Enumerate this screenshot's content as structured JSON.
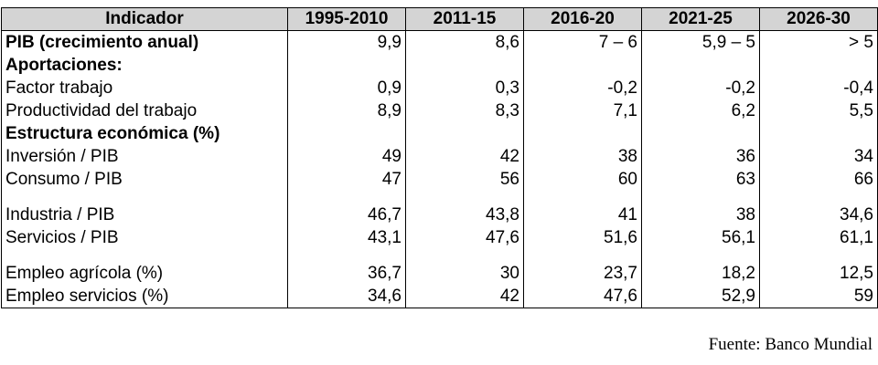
{
  "table": {
    "headers": [
      "Indicador",
      "1995-2010",
      "2011-15",
      "2016-20",
      "2021-25",
      "2026-30"
    ],
    "rows": [
      {
        "label": "PIB (crecimiento anual)",
        "bold": true,
        "values": [
          "9,9",
          "8,6",
          "7 – 6",
          "5,9 – 5",
          "> 5"
        ]
      },
      {
        "label": "Aportaciones:",
        "bold": true,
        "values": [
          "",
          "",
          "",
          "",
          ""
        ]
      },
      {
        "label": "Factor trabajo",
        "bold": false,
        "values": [
          "0,9",
          "0,3",
          "-0,2",
          "-0,2",
          "-0,4"
        ]
      },
      {
        "label": "Productividad del trabajo",
        "bold": false,
        "values": [
          "8,9",
          "8,3",
          "7,1",
          "6,2",
          "5,5"
        ]
      },
      {
        "label": "Estructura económica (%)",
        "bold": true,
        "values": [
          "",
          "",
          "",
          "",
          ""
        ]
      },
      {
        "label": "Inversión / PIB",
        "bold": false,
        "values": [
          "49",
          "42",
          "38",
          "36",
          "34"
        ]
      },
      {
        "label": "Consumo / PIB",
        "bold": false,
        "values": [
          "47",
          "56",
          "60",
          "63",
          "66"
        ]
      },
      {
        "spacer": true
      },
      {
        "label": "Industria / PIB",
        "bold": false,
        "values": [
          "46,7",
          "43,8",
          "41",
          "38",
          "34,6"
        ]
      },
      {
        "label": "Servicios / PIB",
        "bold": false,
        "values": [
          "43,1",
          "47,6",
          "51,6",
          "56,1",
          "61,1"
        ]
      },
      {
        "spacer": true
      },
      {
        "label": "Empleo agrícola (%)",
        "bold": false,
        "values": [
          "36,7",
          "30",
          "23,7",
          "18,2",
          "12,5"
        ]
      },
      {
        "label": "Empleo servicios (%)",
        "bold": false,
        "values": [
          "34,6",
          "42",
          "47,6",
          "52,9",
          "59"
        ]
      }
    ]
  },
  "source": "Fuente: Banco Mundial"
}
